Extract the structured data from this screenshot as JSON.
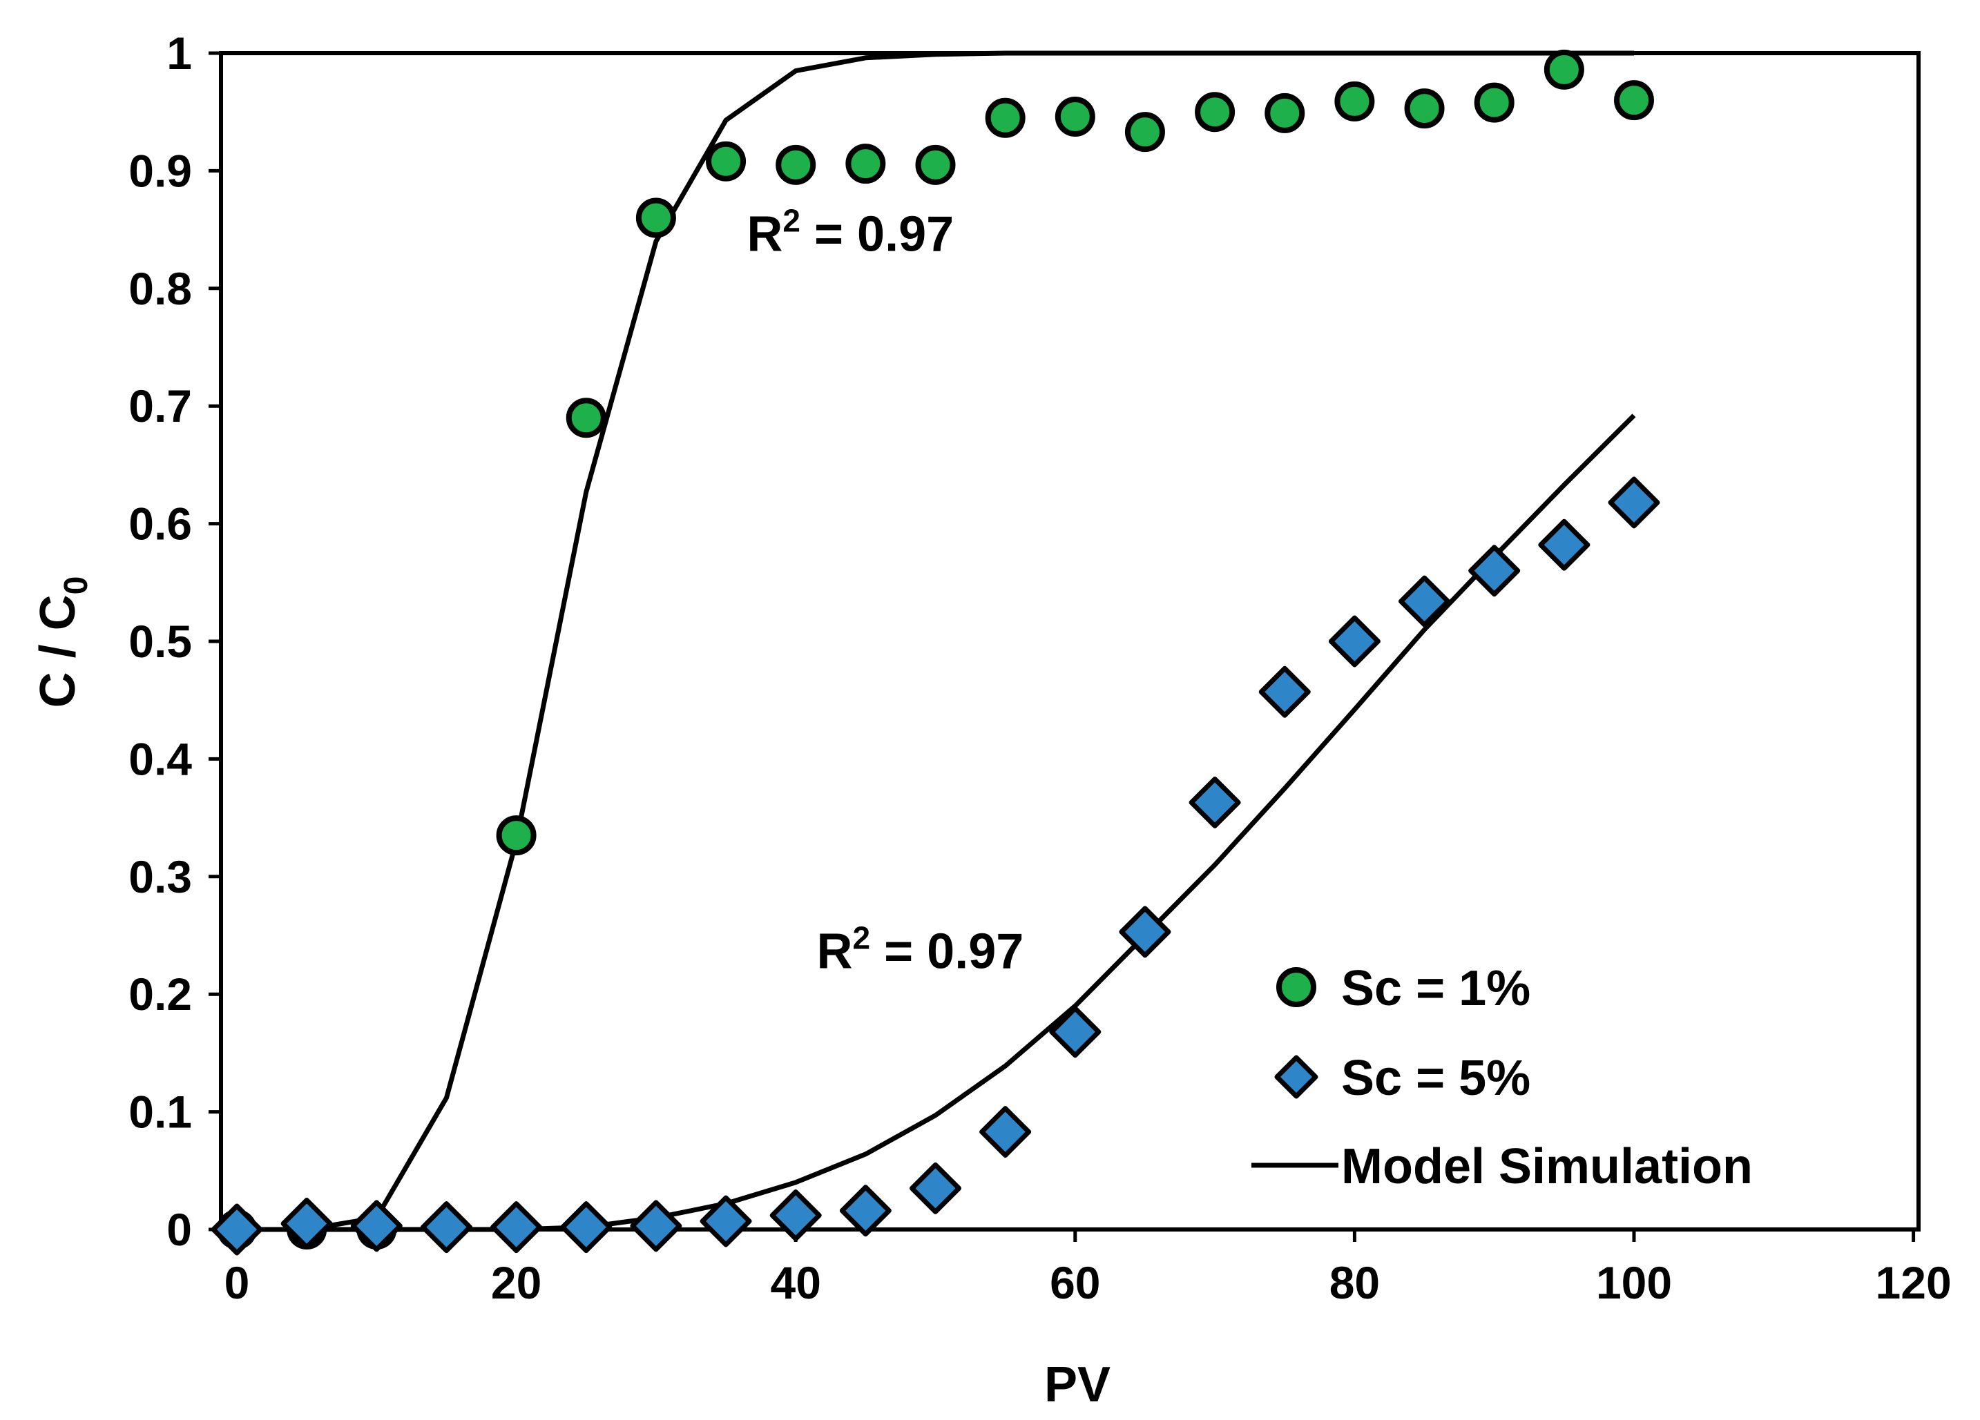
{
  "chart_data": {
    "type": "scatter",
    "title": "",
    "xlabel": "PV",
    "ylabel_main": "C / C",
    "ylabel_sub": "0",
    "xlim": [
      0,
      120
    ],
    "ylim": [
      0,
      1
    ],
    "x_ticks": [
      0,
      20,
      40,
      60,
      80,
      100,
      120
    ],
    "y_ticks": [
      0,
      0.1,
      0.2,
      0.3,
      0.4,
      0.5,
      0.6,
      0.7,
      0.8,
      0.9,
      1
    ],
    "x_tick_labels": [
      "0",
      "20",
      "40",
      "60",
      "80",
      "100",
      "120"
    ],
    "y_tick_labels": [
      "0",
      "0.1",
      "0.2",
      "0.3",
      "0.4",
      "0.5",
      "0.6",
      "0.7",
      "0.8",
      "0.9",
      "1"
    ],
    "grid": false,
    "legend_position": "bottom-right",
    "series": [
      {
        "name": "Sc = 1%",
        "marker": "circle",
        "color": "#1DB04B",
        "x": [
          0,
          5,
          10,
          20,
          25,
          30,
          35,
          40,
          45,
          50,
          55,
          60,
          65,
          70,
          75,
          80,
          85,
          90,
          95,
          100
        ],
        "y": [
          0,
          0,
          0,
          0.335,
          0.69,
          0.86,
          0.908,
          0.905,
          0.906,
          0.905,
          0.945,
          0.946,
          0.933,
          0.95,
          0.949,
          0.959,
          0.953,
          0.958,
          0.986,
          0.96
        ]
      },
      {
        "name": "Sc = 5%",
        "marker": "diamond",
        "color": "#2E86C8",
        "x": [
          0,
          5,
          10,
          15,
          20,
          25,
          30,
          35,
          40,
          45,
          50,
          55,
          60,
          65,
          70,
          75,
          80,
          85,
          90,
          95,
          100
        ],
        "y": [
          0,
          0.005,
          0.003,
          0.002,
          0.002,
          0.002,
          0.003,
          0.007,
          0.012,
          0.016,
          0.035,
          0.083,
          0.168,
          0.253,
          0.363,
          0.457,
          0.5,
          0.534,
          0.56,
          0.582,
          0.618
        ]
      }
    ],
    "model_lines": [
      {
        "name": "Model Simulation (Sc = 1%)",
        "x": [
          0,
          5,
          10,
          15,
          20,
          25,
          30,
          35,
          40,
          45,
          50,
          55,
          60,
          70,
          80,
          90,
          100
        ],
        "y": [
          0,
          0,
          0.01,
          0.112,
          0.33,
          0.627,
          0.84,
          0.943,
          0.985,
          0.996,
          0.999,
          1,
          1,
          1,
          1,
          1,
          1
        ]
      },
      {
        "name": "Model Simulation (Sc = 5%)",
        "x": [
          0,
          10,
          20,
          25,
          30,
          35,
          40,
          45,
          50,
          55,
          60,
          65,
          70,
          75,
          80,
          85,
          90,
          95,
          100
        ],
        "y": [
          0,
          0,
          0,
          0.002,
          0.01,
          0.022,
          0.04,
          0.064,
          0.097,
          0.139,
          0.19,
          0.25,
          0.31,
          0.375,
          0.442,
          0.51,
          0.572,
          0.633,
          0.692
        ]
      }
    ],
    "annotations": [
      {
        "text_main": "R",
        "text_sup": "2",
        "text_rest": " = 0.97",
        "x": 36.5,
        "y": 0.832
      },
      {
        "text_main": "R",
        "text_sup": "2",
        "text_rest": " = 0.97",
        "x": 41.5,
        "y": 0.222
      }
    ],
    "legend": [
      {
        "label": "Sc = 1%",
        "marker": "circle"
      },
      {
        "label": "Sc = 5%",
        "marker": "diamond"
      },
      {
        "label": "Model Simulation",
        "marker": "line"
      }
    ],
    "colors": {
      "green_fill": "#1DB04B",
      "blue_fill": "#2E86C8",
      "outline": "#000000"
    }
  }
}
